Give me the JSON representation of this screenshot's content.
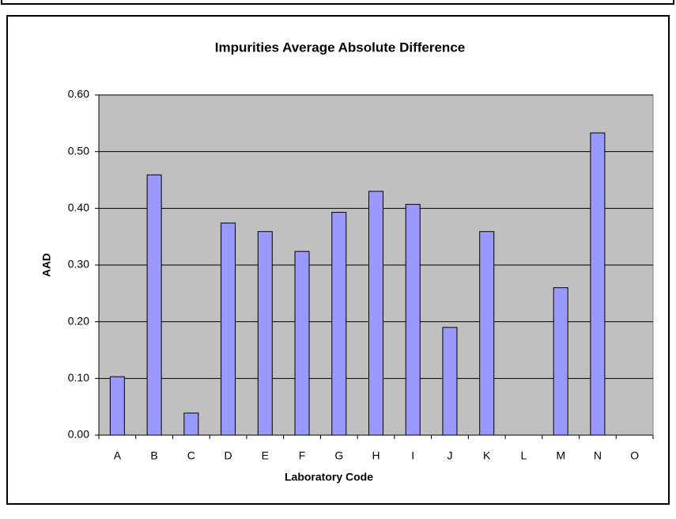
{
  "chart_data": {
    "type": "bar",
    "title": "Impurities Average Absolute Difference",
    "x_label": "Laboratory Code",
    "y_label": "AAD",
    "categories": [
      "A",
      "B",
      "C",
      "D",
      "E",
      "F",
      "G",
      "H",
      "I",
      "J",
      "K",
      "L",
      "M",
      "N",
      "O"
    ],
    "values": [
      0.103,
      0.459,
      0.039,
      0.374,
      0.359,
      0.324,
      0.393,
      0.43,
      0.407,
      0.19,
      0.359,
      null,
      0.26,
      0.533,
      null
    ],
    "color": "#9999ff",
    "ylim": [
      0,
      0.6
    ],
    "yticks": [
      {
        "value": 0,
        "label": "0.00"
      },
      {
        "value": 0.1,
        "label": "0.10"
      },
      {
        "value": 0.2,
        "label": "0.20"
      },
      {
        "value": 0.3,
        "label": "0.30"
      },
      {
        "value": 0.4,
        "label": "0.40"
      },
      {
        "value": 0.5,
        "label": "0.50"
      },
      {
        "value": 0.6,
        "label": "0.60"
      }
    ],
    "grid": true
  }
}
